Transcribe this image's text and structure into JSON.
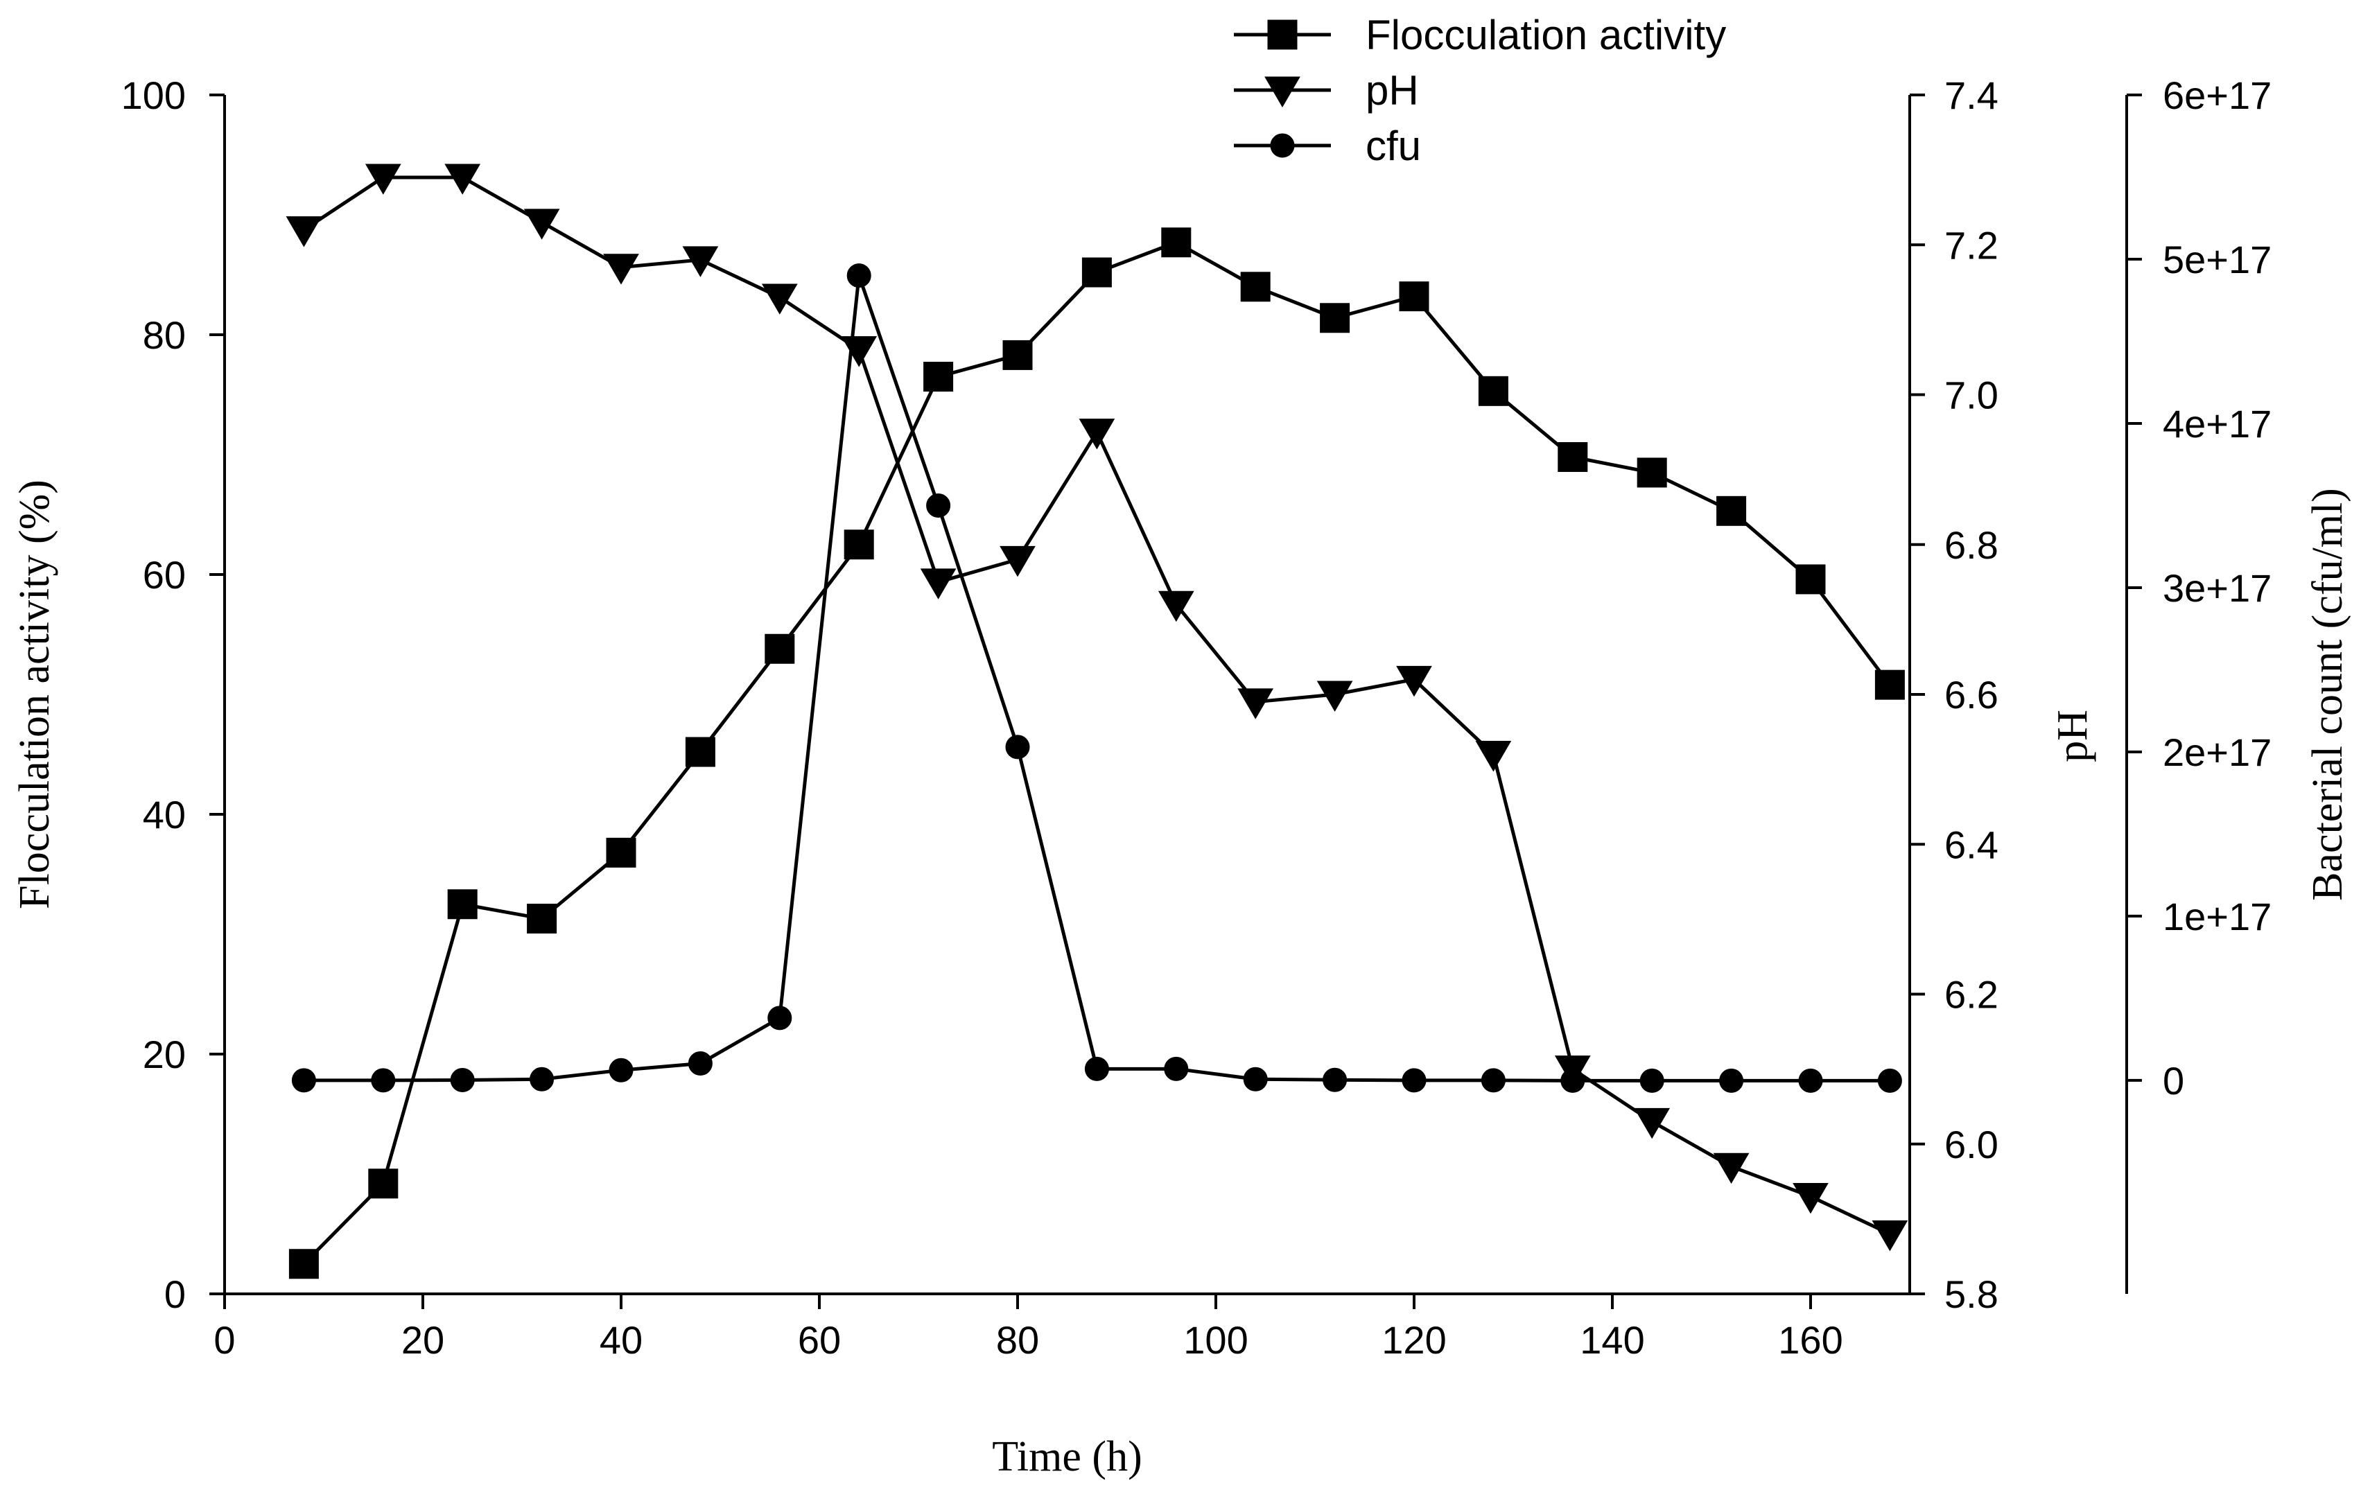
{
  "chart_data": {
    "type": "line",
    "x_axis": {
      "label": "Time (h)",
      "range": [
        0,
        170
      ],
      "ticks": [
        0,
        20,
        40,
        60,
        80,
        100,
        120,
        140,
        160
      ]
    },
    "y_axes": {
      "left": {
        "label": "Flocculation activity (%)",
        "range": [
          0,
          100
        ],
        "ticks": [
          0,
          20,
          40,
          60,
          80,
          100
        ],
        "tick_labels": [
          "0",
          "20",
          "40",
          "60",
          "80",
          "100"
        ]
      },
      "right1": {
        "label": "pH",
        "range": [
          5.8,
          7.4
        ],
        "ticks": [
          5.8,
          6.0,
          6.2,
          6.4,
          6.6,
          6.8,
          7.0,
          7.2,
          7.4
        ],
        "tick_labels": [
          "5.8",
          "6.0",
          "6.2",
          "6.4",
          "6.6",
          "6.8",
          "7.0",
          "7.2",
          "7.4"
        ]
      },
      "right2": {
        "label": "Bacterial count (cfu/ml)",
        "range": [
          -1.3e+17,
          6e+17
        ],
        "ticks": [
          0,
          1e+17,
          2e+17,
          3e+17,
          4e+17,
          5e+17,
          6e+17
        ],
        "tick_labels": [
          "0",
          "1e+17",
          "2e+17",
          "3e+17",
          "4e+17",
          "5e+17",
          "6e+17"
        ]
      }
    },
    "series": [
      {
        "name": "Flocculation activity",
        "axis": "left",
        "marker": "square",
        "x": [
          8,
          16,
          24,
          32,
          40,
          48,
          56,
          64,
          72,
          80,
          88,
          96,
          104,
          112,
          120,
          128,
          136,
          144,
          152,
          160,
          168
        ],
        "values": [
          2.5,
          9.2,
          32.5,
          31.3,
          36.8,
          45.2,
          53.8,
          62.5,
          76.5,
          78.3,
          85.2,
          87.7,
          84.0,
          81.4,
          83.2,
          75.3,
          69.8,
          68.5,
          65.3,
          59.6,
          50.8
        ]
      },
      {
        "name": "pH",
        "axis": "right1",
        "marker": "triangle-down",
        "x": [
          8,
          16,
          24,
          32,
          40,
          48,
          56,
          64,
          72,
          80,
          88,
          96,
          104,
          112,
          120,
          128,
          136,
          144,
          152,
          160,
          168
        ],
        "values": [
          7.22,
          7.29,
          7.29,
          7.23,
          7.17,
          7.18,
          7.13,
          7.06,
          6.75,
          6.78,
          6.95,
          6.72,
          6.59,
          6.6,
          6.62,
          6.52,
          6.1,
          6.03,
          5.97,
          5.93,
          5.88
        ]
      },
      {
        "name": "cfu",
        "axis": "right2",
        "marker": "circle",
        "x": [
          8,
          16,
          24,
          32,
          40,
          48,
          56,
          64,
          72,
          80,
          88,
          96,
          104,
          112,
          120,
          128,
          136,
          144,
          152,
          160,
          168
        ],
        "values": [
          0.0,
          0.0,
          200000000000000.0,
          700000000000000.0,
          6200000000000000.0,
          1.03e+16,
          3.8e+16,
          4.9e+17,
          3.5e+17,
          2.03e+17,
          7000000000000000.0,
          7000000000000000.0,
          700000000000000.0,
          300000000000000.0,
          0.0,
          0.0,
          -200000000000000.0,
          -200000000000000.0,
          -200000000000000.0,
          -200000000000000.0,
          -200000000000000.0
        ]
      }
    ],
    "legend": {
      "position": "top-center",
      "entries": [
        "Flocculation activity",
        "pH",
        "cfu"
      ]
    }
  }
}
